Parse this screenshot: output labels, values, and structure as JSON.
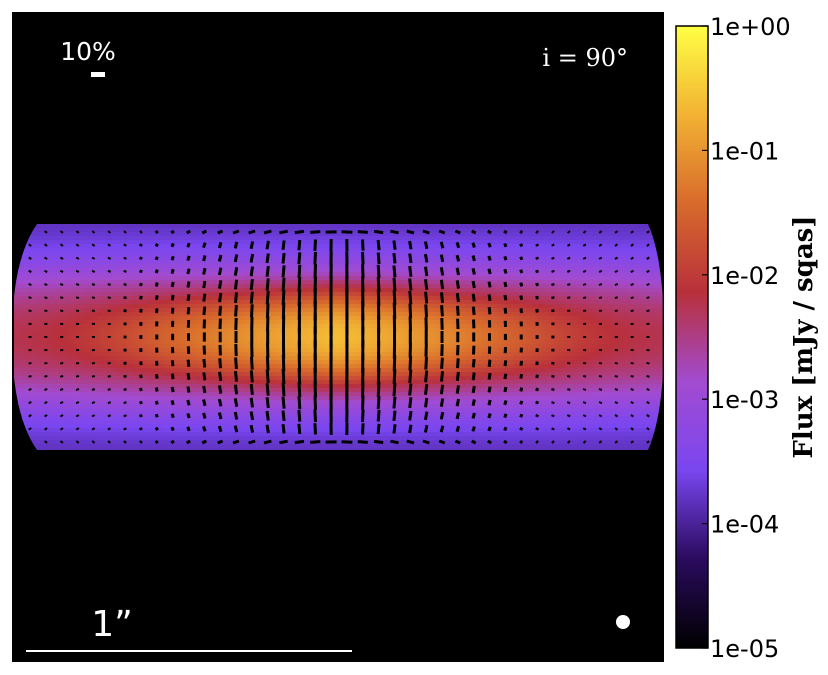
{
  "chart_data": {
    "type": "heatmap",
    "title": "",
    "description_text": {
      "polarization_scale_label": "10%",
      "inclination_label": "i = 90°",
      "angular_scale_label": "1”"
    },
    "inclination_deg": 90,
    "colorbar": {
      "label": "Flux [mJy / sqas]",
      "scale": "log",
      "range": [
        1e-05,
        1.0
      ],
      "ticks": [
        1.0,
        0.1,
        0.01,
        0.001,
        0.0001,
        1e-05
      ],
      "tick_labels": [
        "1e+00",
        "1e-01",
        "1e-02",
        "1e-03",
        "1e-04",
        "1e-05"
      ],
      "colormap": [
        "#000000",
        "#2a0b5e",
        "#7a46f0",
        "#a24bd0",
        "#b8303b",
        "#d86a2c",
        "#f2b233",
        "#ffff44"
      ]
    },
    "disk": {
      "peak_flux": 0.25,
      "midplane_flux": 0.01,
      "edge_flux": 0.0003
    },
    "polarization_vectors": {
      "grid_columns": 40,
      "grid_rows": 17,
      "max_fraction_percent": 30,
      "reference_fraction_percent": 10
    },
    "beam": "circular"
  }
}
